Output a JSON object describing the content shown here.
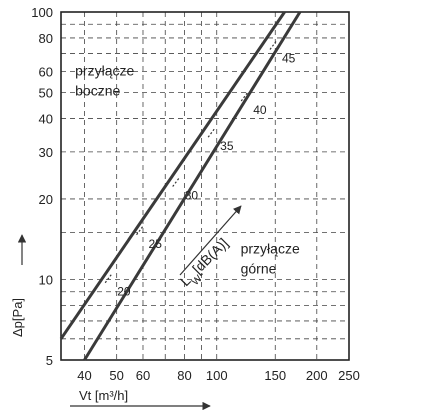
{
  "chart_data": {
    "type": "line",
    "x_scale": "log",
    "y_scale": "log",
    "xlim": [
      34,
      250
    ],
    "ylim": [
      5,
      100
    ],
    "grid": true,
    "x_ticks": [
      40,
      50,
      60,
      80,
      100,
      150,
      200,
      250
    ],
    "x_tick_labels": [
      "40",
      "50",
      "60",
      "80",
      "100",
      "150",
      "200",
      "250"
    ],
    "y_ticks": [
      5,
      10,
      20,
      30,
      40,
      50,
      60,
      80,
      100
    ],
    "y_tick_labels": [
      "5",
      "10",
      "20",
      "30",
      "40",
      "50",
      "60",
      "80",
      "100"
    ],
    "xlabel": "Vt [m³/h]",
    "ylabel": "Δp[Pa]",
    "series": [
      {
        "name": "przyłącze boczne",
        "x": [
          34,
          160
        ],
        "y": [
          6,
          100
        ]
      },
      {
        "name": "przyłącze górne",
        "x": [
          40,
          178
        ],
        "y": [
          5,
          100
        ]
      }
    ],
    "region_labels": [
      {
        "lines": [
          "przyłącze",
          "boczne"
        ],
        "anchor": [
          37.5,
          58
        ]
      },
      {
        "lines": [
          "przyłącze",
          "górne"
        ],
        "anchor": [
          118,
          12.5
        ]
      }
    ],
    "sound_levels": [
      {
        "value": "20",
        "x": 49.5,
        "y": 9.0
      },
      {
        "value": "25",
        "x": 61.5,
        "y": 13.6
      },
      {
        "value": "30",
        "x": 79,
        "y": 20.6
      },
      {
        "value": "35",
        "x": 101,
        "y": 31.5
      },
      {
        "value": "40",
        "x": 127,
        "y": 43
      },
      {
        "value": "45",
        "x": 155,
        "y": 67
      }
    ],
    "level_annotation": "LW [dB(A)]",
    "level_annotation_parts": {
      "main": "L",
      "sub": "W",
      "rest": "[dB(A)]"
    }
  }
}
